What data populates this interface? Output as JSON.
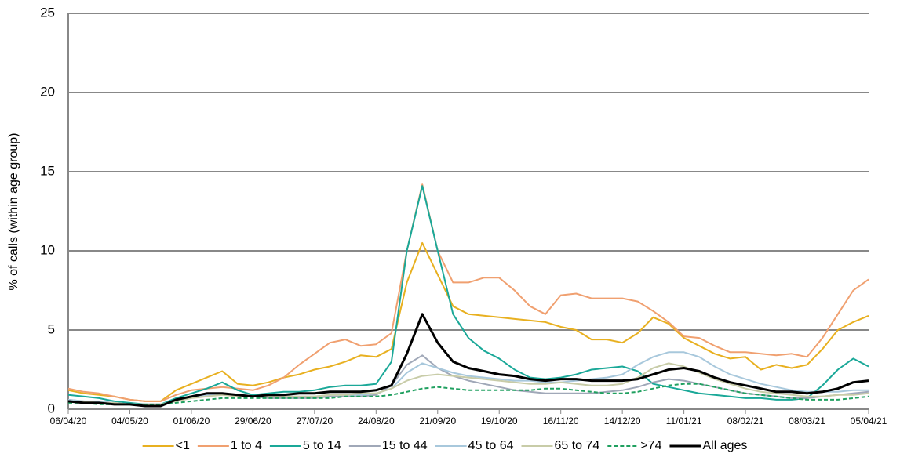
{
  "chart_data": {
    "type": "line",
    "y_label": "% of calls (within age group)",
    "x": [
      "06/04/20",
      "13/04/20",
      "20/04/20",
      "27/04/20",
      "04/05/20",
      "11/05/20",
      "18/05/20",
      "25/05/20",
      "01/06/20",
      "08/06/20",
      "15/06/20",
      "22/06/20",
      "29/06/20",
      "06/07/20",
      "13/07/20",
      "20/07/20",
      "27/07/20",
      "03/08/20",
      "10/08/20",
      "17/08/20",
      "24/08/20",
      "31/08/20",
      "07/09/20",
      "14/09/20",
      "21/09/20",
      "28/09/20",
      "05/10/20",
      "12/10/20",
      "19/10/20",
      "26/10/20",
      "02/11/20",
      "09/11/20",
      "16/11/20",
      "23/11/20",
      "30/11/20",
      "07/12/20",
      "14/12/20",
      "21/12/20",
      "28/12/20",
      "04/01/21",
      "11/01/21",
      "18/01/21",
      "25/01/21",
      "01/02/21",
      "08/02/21",
      "15/02/21",
      "22/02/21",
      "01/03/21",
      "08/03/21",
      "15/03/21",
      "22/03/21",
      "29/03/21",
      "05/04/21"
    ],
    "xlim": [
      "06/04/20",
      "05/04/21"
    ],
    "xticks": [
      "06/04/20",
      "04/05/20",
      "01/06/20",
      "29/06/20",
      "27/07/20",
      "24/08/20",
      "21/09/20",
      "19/10/20",
      "16/11/20",
      "14/12/20",
      "11/01/21",
      "08/02/21",
      "08/03/21",
      "05/04/21"
    ],
    "ylim": [
      0,
      25
    ],
    "yticks": [
      0,
      5,
      10,
      15,
      20,
      25
    ],
    "grid": true,
    "legend": "bottom",
    "series": [
      {
        "name": "<1",
        "color": "#e8b020",
        "values": [
          1.2,
          1.0,
          0.9,
          0.8,
          0.6,
          0.5,
          0.5,
          1.2,
          1.6,
          2.0,
          2.4,
          1.6,
          1.5,
          1.7,
          2.0,
          2.2,
          2.5,
          2.7,
          3.0,
          3.4,
          3.3,
          3.8,
          8.0,
          10.5,
          8.5,
          6.5,
          6.0,
          5.9,
          5.8,
          5.7,
          5.6,
          5.5,
          5.2,
          5.0,
          4.4,
          4.4,
          4.2,
          4.8,
          5.8,
          5.4,
          4.5,
          4.0,
          3.5,
          3.2,
          3.3,
          2.5,
          2.8,
          2.6,
          2.8,
          3.8,
          5.0,
          5.5,
          5.9
        ]
      },
      {
        "name": "1 to 4",
        "color": "#f0a070",
        "values": [
          1.3,
          1.1,
          1.0,
          0.8,
          0.6,
          0.5,
          0.5,
          0.9,
          1.2,
          1.3,
          1.4,
          1.3,
          1.2,
          1.5,
          2.0,
          2.8,
          3.5,
          4.2,
          4.4,
          4.0,
          4.1,
          4.8,
          10,
          14.2,
          10,
          8.0,
          8.0,
          8.3,
          8.3,
          7.5,
          6.5,
          6.0,
          7.2,
          7.3,
          7.0,
          7.0,
          7.0,
          6.8,
          6.2,
          5.5,
          4.6,
          4.5,
          4.0,
          3.6,
          3.6,
          3.5,
          3.4,
          3.5,
          3.3,
          4.5,
          6.0,
          7.5,
          8.2
        ]
      },
      {
        "name": "5 to 14",
        "color": "#1aa898",
        "values": [
          0.9,
          0.8,
          0.7,
          0.5,
          0.4,
          0.3,
          0.3,
          0.7,
          1.0,
          1.3,
          1.7,
          1.2,
          0.9,
          1.0,
          1.1,
          1.1,
          1.2,
          1.4,
          1.5,
          1.5,
          1.6,
          3.0,
          10,
          14.1,
          10,
          6.0,
          4.5,
          3.7,
          3.2,
          2.5,
          2.0,
          1.9,
          2.0,
          2.2,
          2.5,
          2.6,
          2.7,
          2.4,
          1.6,
          1.4,
          1.2,
          1.0,
          0.9,
          0.8,
          0.7,
          0.7,
          0.6,
          0.6,
          0.7,
          1.5,
          2.5,
          3.2,
          2.7
        ]
      },
      {
        "name": "15 to 44",
        "color": "#a0a8b8",
        "values": [
          0.6,
          0.5,
          0.4,
          0.4,
          0.3,
          0.3,
          0.3,
          0.5,
          0.8,
          0.9,
          1.0,
          0.9,
          0.8,
          0.7,
          0.7,
          0.7,
          0.7,
          0.8,
          0.8,
          0.8,
          0.9,
          1.5,
          2.8,
          3.4,
          2.6,
          2.1,
          1.8,
          1.6,
          1.4,
          1.2,
          1.1,
          1.0,
          1.0,
          1.0,
          1.0,
          1.1,
          1.2,
          1.4,
          1.7,
          1.9,
          1.8,
          1.6,
          1.4,
          1.2,
          1.0,
          0.9,
          0.8,
          0.7,
          0.7,
          0.8,
          0.9,
          1.0,
          1.1
        ]
      },
      {
        "name": "45 to 64",
        "color": "#a8c8dc",
        "values": [
          0.6,
          0.5,
          0.5,
          0.4,
          0.3,
          0.3,
          0.3,
          0.5,
          0.8,
          0.9,
          1.0,
          0.9,
          0.8,
          0.8,
          0.8,
          0.8,
          0.8,
          0.9,
          0.9,
          0.9,
          1.0,
          1.3,
          2.3,
          2.9,
          2.6,
          2.3,
          2.1,
          2.0,
          1.9,
          1.8,
          1.8,
          1.7,
          1.7,
          1.8,
          1.9,
          2.0,
          2.2,
          2.8,
          3.3,
          3.6,
          3.6,
          3.3,
          2.7,
          2.2,
          1.9,
          1.6,
          1.4,
          1.2,
          1.1,
          1.1,
          1.1,
          1.2,
          1.2
        ]
      },
      {
        "name": "65 to 74",
        "color": "#c8cca8",
        "values": [
          0.5,
          0.5,
          0.4,
          0.4,
          0.3,
          0.3,
          0.3,
          0.5,
          0.7,
          0.8,
          0.9,
          0.8,
          0.8,
          0.8,
          0.8,
          0.8,
          0.8,
          0.9,
          0.9,
          1.0,
          1.0,
          1.3,
          1.8,
          2.1,
          2.2,
          2.1,
          2.0,
          1.9,
          1.8,
          1.7,
          1.6,
          1.6,
          1.7,
          1.6,
          1.5,
          1.5,
          1.6,
          2.0,
          2.6,
          2.9,
          2.7,
          2.3,
          1.9,
          1.6,
          1.3,
          1.1,
          1.0,
          0.9,
          0.8,
          0.8,
          0.9,
          0.9,
          1.0
        ]
      },
      {
        "name": ">74",
        "color": "#20a060",
        "linestyle": "dashed",
        "values": [
          0.4,
          0.4,
          0.3,
          0.3,
          0.3,
          0.3,
          0.3,
          0.4,
          0.5,
          0.6,
          0.7,
          0.7,
          0.7,
          0.7,
          0.7,
          0.7,
          0.7,
          0.7,
          0.8,
          0.8,
          0.8,
          0.9,
          1.1,
          1.3,
          1.4,
          1.3,
          1.2,
          1.2,
          1.2,
          1.2,
          1.2,
          1.3,
          1.3,
          1.2,
          1.1,
          1.0,
          1.0,
          1.1,
          1.3,
          1.5,
          1.6,
          1.6,
          1.4,
          1.2,
          1.0,
          0.9,
          0.8,
          0.7,
          0.6,
          0.6,
          0.6,
          0.7,
          0.8
        ]
      },
      {
        "name": "All ages",
        "color": "#000000",
        "bold": true,
        "values": [
          0.5,
          0.4,
          0.4,
          0.3,
          0.3,
          0.2,
          0.2,
          0.6,
          0.8,
          1.0,
          1.0,
          0.9,
          0.8,
          0.9,
          0.9,
          1.0,
          1.0,
          1.1,
          1.1,
          1.1,
          1.2,
          1.5,
          3.5,
          6.0,
          4.2,
          3.0,
          2.6,
          2.4,
          2.2,
          2.1,
          1.9,
          1.8,
          1.9,
          1.9,
          1.8,
          1.8,
          1.8,
          1.9,
          2.2,
          2.5,
          2.6,
          2.4,
          2.0,
          1.7,
          1.5,
          1.3,
          1.1,
          1.1,
          1.0,
          1.1,
          1.3,
          1.7,
          1.8
        ]
      }
    ]
  }
}
